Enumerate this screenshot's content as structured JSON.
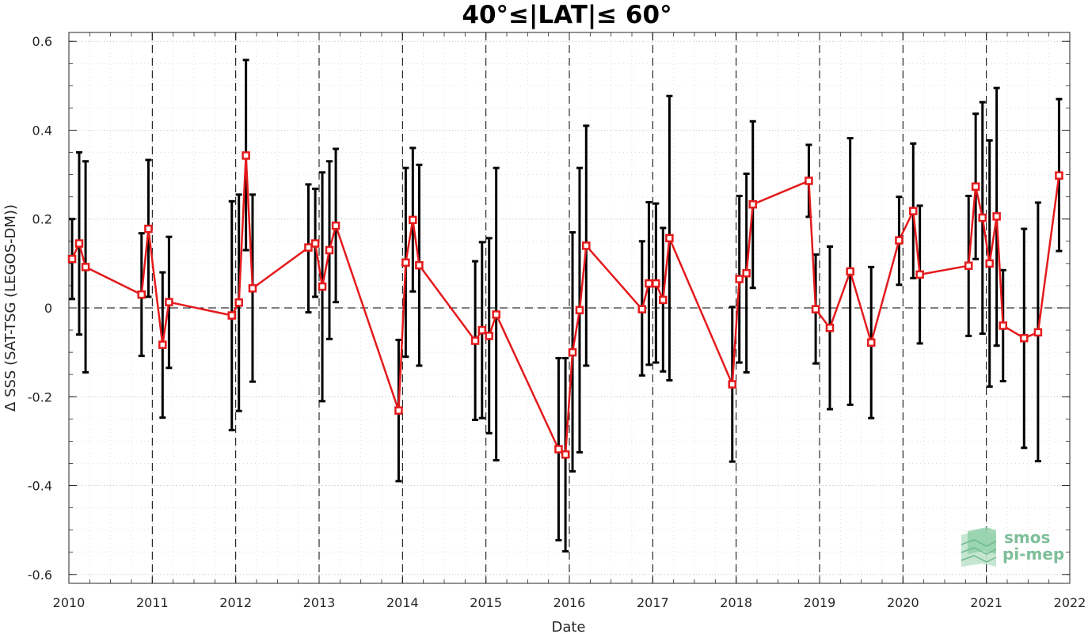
{
  "chart_data": {
    "type": "line",
    "title": "40°≤|LAT|≤ 60°",
    "xlabel": "Date",
    "ylabel": "Δ SSS (SAT-TSG (LEGOS-DM))",
    "xlim": [
      "2010-01-01",
      "2022-01-01"
    ],
    "ylim": [
      -0.62,
      0.62
    ],
    "x_ticks": [
      "2010",
      "2011",
      "2012",
      "2013",
      "2014",
      "2015",
      "2016",
      "2017",
      "2018",
      "2019",
      "2020",
      "2021",
      "2022"
    ],
    "y_ticks": [
      -0.6,
      -0.4,
      -0.2,
      0,
      0.2,
      0.4,
      0.6
    ],
    "y_tick_labels": [
      "-0.6",
      "-0.4",
      "-0.2",
      "0",
      "0.2",
      "0.4",
      "0.6"
    ],
    "grid": true,
    "reference_line_y": 0,
    "year_divider_lines": [
      "2011",
      "2012",
      "2013",
      "2014",
      "2015",
      "2016",
      "2017",
      "2018",
      "2019",
      "2020",
      "2021"
    ],
    "series": [
      {
        "marker": "square",
        "color": "#e41a1c",
        "errorbar_color": "#000000",
        "points": [
          {
            "x": "2010-01-15",
            "y": 0.11,
            "err_low": 0.02,
            "err_high": 0.2
          },
          {
            "x": "2010-02-15",
            "y": 0.145,
            "err_low": -0.06,
            "err_high": 0.35
          },
          {
            "x": "2010-03-15",
            "y": 0.092,
            "err_low": -0.145,
            "err_high": 0.33
          },
          {
            "x": "2010-11-15",
            "y": 0.03,
            "err_low": -0.108,
            "err_high": 0.168
          },
          {
            "x": "2010-12-15",
            "y": 0.178,
            "err_low": 0.025,
            "err_high": 0.333
          },
          {
            "x": "2011-02-15",
            "y": -0.083,
            "err_low": -0.247,
            "err_high": 0.08
          },
          {
            "x": "2011-03-15",
            "y": 0.013,
            "err_low": -0.135,
            "err_high": 0.16
          },
          {
            "x": "2011-12-15",
            "y": -0.017,
            "err_low": -0.275,
            "err_high": 0.24
          },
          {
            "x": "2012-01-15",
            "y": 0.012,
            "err_low": -0.232,
            "err_high": 0.255
          },
          {
            "x": "2012-02-15",
            "y": 0.343,
            "err_low": 0.13,
            "err_high": 0.558
          },
          {
            "x": "2012-03-15",
            "y": 0.044,
            "err_low": -0.166,
            "err_high": 0.255
          },
          {
            "x": "2012-11-15",
            "y": 0.136,
            "err_low": -0.01,
            "err_high": 0.278
          },
          {
            "x": "2012-12-15",
            "y": 0.145,
            "err_low": 0.025,
            "err_high": 0.268
          },
          {
            "x": "2013-01-15",
            "y": 0.048,
            "err_low": -0.21,
            "err_high": 0.305
          },
          {
            "x": "2013-02-15",
            "y": 0.13,
            "err_low": -0.07,
            "err_high": 0.33
          },
          {
            "x": "2013-03-15",
            "y": 0.185,
            "err_low": 0.013,
            "err_high": 0.358
          },
          {
            "x": "2013-12-15",
            "y": -0.231,
            "err_low": -0.39,
            "err_high": -0.072
          },
          {
            "x": "2014-01-15",
            "y": 0.102,
            "err_low": -0.11,
            "err_high": 0.315
          },
          {
            "x": "2014-02-15",
            "y": 0.198,
            "err_low": 0.037,
            "err_high": 0.36
          },
          {
            "x": "2014-03-15",
            "y": 0.096,
            "err_low": -0.13,
            "err_high": 0.322
          },
          {
            "x": "2014-11-15",
            "y": -0.074,
            "err_low": -0.252,
            "err_high": 0.105
          },
          {
            "x": "2014-12-15",
            "y": -0.05,
            "err_low": -0.248,
            "err_high": 0.148
          },
          {
            "x": "2015-01-15",
            "y": -0.063,
            "err_low": -0.282,
            "err_high": 0.157
          },
          {
            "x": "2015-02-15",
            "y": -0.015,
            "err_low": -0.343,
            "err_high": 0.315
          },
          {
            "x": "2015-11-15",
            "y": -0.318,
            "err_low": -0.523,
            "err_high": -0.113
          },
          {
            "x": "2015-12-15",
            "y": -0.33,
            "err_low": -0.548,
            "err_high": -0.113
          },
          {
            "x": "2016-01-15",
            "y": -0.1,
            "err_low": -0.368,
            "err_high": 0.17
          },
          {
            "x": "2016-02-15",
            "y": -0.005,
            "err_low": -0.325,
            "err_high": 0.315
          },
          {
            "x": "2016-03-15",
            "y": 0.14,
            "err_low": -0.13,
            "err_high": 0.41
          },
          {
            "x": "2016-11-15",
            "y": -0.003,
            "err_low": -0.152,
            "err_high": 0.15
          },
          {
            "x": "2016-12-15",
            "y": 0.055,
            "err_low": -0.128,
            "err_high": 0.238
          },
          {
            "x": "2017-01-15",
            "y": 0.055,
            "err_low": -0.123,
            "err_high": 0.235
          },
          {
            "x": "2017-02-15",
            "y": 0.018,
            "err_low": -0.143,
            "err_high": 0.18
          },
          {
            "x": "2017-03-15",
            "y": 0.157,
            "err_low": -0.163,
            "err_high": 0.477
          },
          {
            "x": "2017-12-15",
            "y": -0.172,
            "err_low": -0.346,
            "err_high": 0.002
          },
          {
            "x": "2018-01-15",
            "y": 0.065,
            "err_low": -0.123,
            "err_high": 0.252
          },
          {
            "x": "2018-02-15",
            "y": 0.078,
            "err_low": -0.145,
            "err_high": 0.302
          },
          {
            "x": "2018-03-15",
            "y": 0.233,
            "err_low": 0.045,
            "err_high": 0.42
          },
          {
            "x": "2018-11-15",
            "y": 0.286,
            "err_low": 0.205,
            "err_high": 0.367
          },
          {
            "x": "2018-12-15",
            "y": -0.003,
            "err_low": -0.125,
            "err_high": 0.12
          },
          {
            "x": "2019-02-15",
            "y": -0.045,
            "err_low": -0.228,
            "err_high": 0.138
          },
          {
            "x": "2019-05-15",
            "y": 0.082,
            "err_low": -0.218,
            "err_high": 0.382
          },
          {
            "x": "2019-08-15",
            "y": -0.078,
            "err_low": -0.248,
            "err_high": 0.092
          },
          {
            "x": "2019-12-15",
            "y": 0.152,
            "err_low": 0.052,
            "err_high": 0.25
          },
          {
            "x": "2020-02-15",
            "y": 0.218,
            "err_low": 0.067,
            "err_high": 0.37
          },
          {
            "x": "2020-03-15",
            "y": 0.075,
            "err_low": -0.08,
            "err_high": 0.23
          },
          {
            "x": "2020-10-15",
            "y": 0.095,
            "err_low": -0.063,
            "err_high": 0.252
          },
          {
            "x": "2020-11-15",
            "y": 0.273,
            "err_low": 0.11,
            "err_high": 0.437
          },
          {
            "x": "2020-12-15",
            "y": 0.203,
            "err_low": -0.058,
            "err_high": 0.463
          },
          {
            "x": "2021-01-15",
            "y": 0.1,
            "err_low": -0.177,
            "err_high": 0.377
          },
          {
            "x": "2021-02-15",
            "y": 0.206,
            "err_low": -0.085,
            "err_high": 0.495
          },
          {
            "x": "2021-03-15",
            "y": -0.04,
            "err_low": -0.165,
            "err_high": 0.085
          },
          {
            "x": "2021-06-15",
            "y": -0.068,
            "err_low": -0.315,
            "err_high": 0.178
          },
          {
            "x": "2021-08-15",
            "y": -0.055,
            "err_low": -0.345,
            "err_high": 0.237
          },
          {
            "x": "2021-11-15",
            "y": 0.298,
            "err_low": 0.128,
            "err_high": 0.47
          }
        ]
      }
    ]
  },
  "logo": {
    "line1": "smos",
    "line2": "pi-mep"
  }
}
